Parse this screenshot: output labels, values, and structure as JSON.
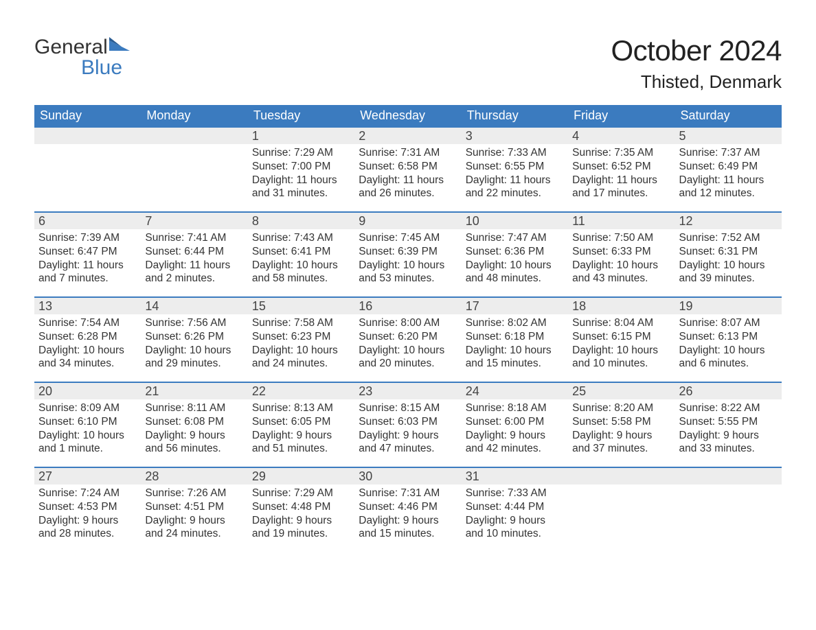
{
  "brand": {
    "word1": "General",
    "word2": "Blue",
    "flag_color": "#3b7bbf"
  },
  "title": "October 2024",
  "location": "Thisted, Denmark",
  "colors": {
    "header_bg": "#3b7bbf",
    "daynum_bg": "#ededed",
    "text": "#333333",
    "accent": "#3b7bbf"
  },
  "days_of_week": [
    "Sunday",
    "Monday",
    "Tuesday",
    "Wednesday",
    "Thursday",
    "Friday",
    "Saturday"
  ],
  "weeks": [
    [
      {
        "num": "",
        "sunrise": "",
        "sunset": "",
        "daylight": ""
      },
      {
        "num": "",
        "sunrise": "",
        "sunset": "",
        "daylight": ""
      },
      {
        "num": "1",
        "sunrise": "Sunrise: 7:29 AM",
        "sunset": "Sunset: 7:00 PM",
        "daylight": "Daylight: 11 hours and 31 minutes."
      },
      {
        "num": "2",
        "sunrise": "Sunrise: 7:31 AM",
        "sunset": "Sunset: 6:58 PM",
        "daylight": "Daylight: 11 hours and 26 minutes."
      },
      {
        "num": "3",
        "sunrise": "Sunrise: 7:33 AM",
        "sunset": "Sunset: 6:55 PM",
        "daylight": "Daylight: 11 hours and 22 minutes."
      },
      {
        "num": "4",
        "sunrise": "Sunrise: 7:35 AM",
        "sunset": "Sunset: 6:52 PM",
        "daylight": "Daylight: 11 hours and 17 minutes."
      },
      {
        "num": "5",
        "sunrise": "Sunrise: 7:37 AM",
        "sunset": "Sunset: 6:49 PM",
        "daylight": "Daylight: 11 hours and 12 minutes."
      }
    ],
    [
      {
        "num": "6",
        "sunrise": "Sunrise: 7:39 AM",
        "sunset": "Sunset: 6:47 PM",
        "daylight": "Daylight: 11 hours and 7 minutes."
      },
      {
        "num": "7",
        "sunrise": "Sunrise: 7:41 AM",
        "sunset": "Sunset: 6:44 PM",
        "daylight": "Daylight: 11 hours and 2 minutes."
      },
      {
        "num": "8",
        "sunrise": "Sunrise: 7:43 AM",
        "sunset": "Sunset: 6:41 PM",
        "daylight": "Daylight: 10 hours and 58 minutes."
      },
      {
        "num": "9",
        "sunrise": "Sunrise: 7:45 AM",
        "sunset": "Sunset: 6:39 PM",
        "daylight": "Daylight: 10 hours and 53 minutes."
      },
      {
        "num": "10",
        "sunrise": "Sunrise: 7:47 AM",
        "sunset": "Sunset: 6:36 PM",
        "daylight": "Daylight: 10 hours and 48 minutes."
      },
      {
        "num": "11",
        "sunrise": "Sunrise: 7:50 AM",
        "sunset": "Sunset: 6:33 PM",
        "daylight": "Daylight: 10 hours and 43 minutes."
      },
      {
        "num": "12",
        "sunrise": "Sunrise: 7:52 AM",
        "sunset": "Sunset: 6:31 PM",
        "daylight": "Daylight: 10 hours and 39 minutes."
      }
    ],
    [
      {
        "num": "13",
        "sunrise": "Sunrise: 7:54 AM",
        "sunset": "Sunset: 6:28 PM",
        "daylight": "Daylight: 10 hours and 34 minutes."
      },
      {
        "num": "14",
        "sunrise": "Sunrise: 7:56 AM",
        "sunset": "Sunset: 6:26 PM",
        "daylight": "Daylight: 10 hours and 29 minutes."
      },
      {
        "num": "15",
        "sunrise": "Sunrise: 7:58 AM",
        "sunset": "Sunset: 6:23 PM",
        "daylight": "Daylight: 10 hours and 24 minutes."
      },
      {
        "num": "16",
        "sunrise": "Sunrise: 8:00 AM",
        "sunset": "Sunset: 6:20 PM",
        "daylight": "Daylight: 10 hours and 20 minutes."
      },
      {
        "num": "17",
        "sunrise": "Sunrise: 8:02 AM",
        "sunset": "Sunset: 6:18 PM",
        "daylight": "Daylight: 10 hours and 15 minutes."
      },
      {
        "num": "18",
        "sunrise": "Sunrise: 8:04 AM",
        "sunset": "Sunset: 6:15 PM",
        "daylight": "Daylight: 10 hours and 10 minutes."
      },
      {
        "num": "19",
        "sunrise": "Sunrise: 8:07 AM",
        "sunset": "Sunset: 6:13 PM",
        "daylight": "Daylight: 10 hours and 6 minutes."
      }
    ],
    [
      {
        "num": "20",
        "sunrise": "Sunrise: 8:09 AM",
        "sunset": "Sunset: 6:10 PM",
        "daylight": "Daylight: 10 hours and 1 minute."
      },
      {
        "num": "21",
        "sunrise": "Sunrise: 8:11 AM",
        "sunset": "Sunset: 6:08 PM",
        "daylight": "Daylight: 9 hours and 56 minutes."
      },
      {
        "num": "22",
        "sunrise": "Sunrise: 8:13 AM",
        "sunset": "Sunset: 6:05 PM",
        "daylight": "Daylight: 9 hours and 51 minutes."
      },
      {
        "num": "23",
        "sunrise": "Sunrise: 8:15 AM",
        "sunset": "Sunset: 6:03 PM",
        "daylight": "Daylight: 9 hours and 47 minutes."
      },
      {
        "num": "24",
        "sunrise": "Sunrise: 8:18 AM",
        "sunset": "Sunset: 6:00 PM",
        "daylight": "Daylight: 9 hours and 42 minutes."
      },
      {
        "num": "25",
        "sunrise": "Sunrise: 8:20 AM",
        "sunset": "Sunset: 5:58 PM",
        "daylight": "Daylight: 9 hours and 37 minutes."
      },
      {
        "num": "26",
        "sunrise": "Sunrise: 8:22 AM",
        "sunset": "Sunset: 5:55 PM",
        "daylight": "Daylight: 9 hours and 33 minutes."
      }
    ],
    [
      {
        "num": "27",
        "sunrise": "Sunrise: 7:24 AM",
        "sunset": "Sunset: 4:53 PM",
        "daylight": "Daylight: 9 hours and 28 minutes."
      },
      {
        "num": "28",
        "sunrise": "Sunrise: 7:26 AM",
        "sunset": "Sunset: 4:51 PM",
        "daylight": "Daylight: 9 hours and 24 minutes."
      },
      {
        "num": "29",
        "sunrise": "Sunrise: 7:29 AM",
        "sunset": "Sunset: 4:48 PM",
        "daylight": "Daylight: 9 hours and 19 minutes."
      },
      {
        "num": "30",
        "sunrise": "Sunrise: 7:31 AM",
        "sunset": "Sunset: 4:46 PM",
        "daylight": "Daylight: 9 hours and 15 minutes."
      },
      {
        "num": "31",
        "sunrise": "Sunrise: 7:33 AM",
        "sunset": "Sunset: 4:44 PM",
        "daylight": "Daylight: 9 hours and 10 minutes."
      },
      {
        "num": "",
        "sunrise": "",
        "sunset": "",
        "daylight": ""
      },
      {
        "num": "",
        "sunrise": "",
        "sunset": "",
        "daylight": ""
      }
    ]
  ]
}
